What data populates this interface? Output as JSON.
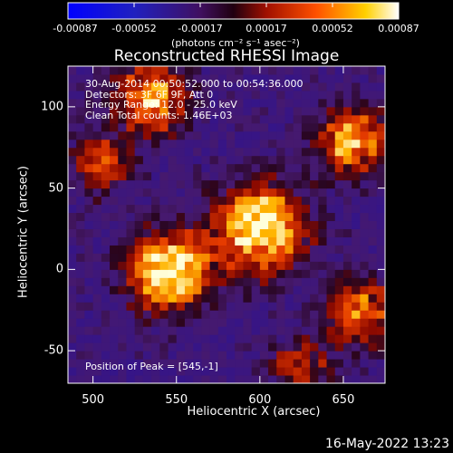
{
  "chart_data": {
    "type": "heatmap",
    "title": "Reconstructed RHESSI Image",
    "xlabel": "Heliocentric X (arcsec)",
    "ylabel": "Heliocentric Y (arcsec)",
    "xlim": [
      485,
      675
    ],
    "ylim": [
      -70,
      125
    ],
    "xticks": [
      500,
      550,
      600,
      650
    ],
    "yticks": [
      -50,
      0,
      50,
      100
    ],
    "colorbar": {
      "ticks": [
        "-0.00087",
        "-0.00052",
        "-0.00017",
        "0.00017",
        "0.00052",
        "0.00087"
      ],
      "range": [
        -0.00087,
        0.00087
      ],
      "units_label": "(photons cm⁻² s⁻¹ asec⁻²)",
      "colormap": "blue-purple-red-yellow-white"
    },
    "annotations": [
      "30-Aug-2014 00:50:52.000 to 00:54:36.000",
      "Detectors: 3F 6F 9F, Att 0",
      "Energy Range: 12.0 - 25.0 keV",
      "Clean    Total counts: 1.46E+03"
    ],
    "peak_label": "Position of Peak = [545,-1]",
    "peak_position": [
      545,
      -1
    ],
    "sources": [
      {
        "x": 545,
        "y": -1,
        "intensity": 1.0,
        "sigma": 16
      },
      {
        "x": 600,
        "y": 25,
        "intensity": 0.95,
        "sigma": 18
      },
      {
        "x": 535,
        "y": 105,
        "intensity": 0.75,
        "sigma": 14
      },
      {
        "x": 655,
        "y": 80,
        "intensity": 0.75,
        "sigma": 14
      },
      {
        "x": 660,
        "y": -25,
        "intensity": 0.6,
        "sigma": 14
      },
      {
        "x": 505,
        "y": 65,
        "intensity": 0.5,
        "sigma": 12
      },
      {
        "x": 625,
        "y": -60,
        "intensity": 0.45,
        "sigma": 12
      }
    ]
  },
  "timestamp": "16-May-2022 13:23"
}
